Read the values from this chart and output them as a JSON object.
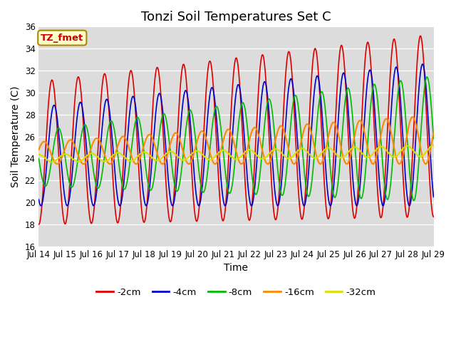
{
  "title": "Tonzi Soil Temperatures Set C",
  "xlabel": "Time",
  "ylabel": "Soil Temperature (C)",
  "ylim": [
    16,
    36
  ],
  "xlim_days": [
    0,
    15
  ],
  "annotation": "TZ_fmet",
  "bg_color": "#dcdcdc",
  "fig_bg": "#ffffff",
  "series": {
    "-2cm": {
      "color": "#dd0000",
      "lw": 1.2
    },
    "-4cm": {
      "color": "#0000cc",
      "lw": 1.2
    },
    "-8cm": {
      "color": "#00bb00",
      "lw": 1.2
    },
    "-16cm": {
      "color": "#ff8800",
      "lw": 1.5
    },
    "-32cm": {
      "color": "#dddd00",
      "lw": 1.5
    }
  },
  "xtick_days": [
    0,
    1,
    2,
    3,
    4,
    5,
    6,
    7,
    8,
    9,
    10,
    11,
    12,
    13,
    14,
    15
  ],
  "xtick_labels": [
    "Jul 14",
    "Jul 15",
    "Jul 16",
    "Jul 17",
    "Jul 18",
    "Jul 19",
    "Jul 20",
    "Jul 21",
    "Jul 22",
    "Jul 23",
    "Jul 24",
    "Jul 25",
    "Jul 26",
    "Jul 27",
    "Jul 28",
    "Jul 29"
  ],
  "legend_order": [
    "-2cm",
    "-4cm",
    "-8cm",
    "-16cm",
    "-32cm"
  ],
  "grid_color": "#ffffff",
  "title_fontsize": 13,
  "label_fontsize": 10,
  "tick_fontsize": 8.5
}
